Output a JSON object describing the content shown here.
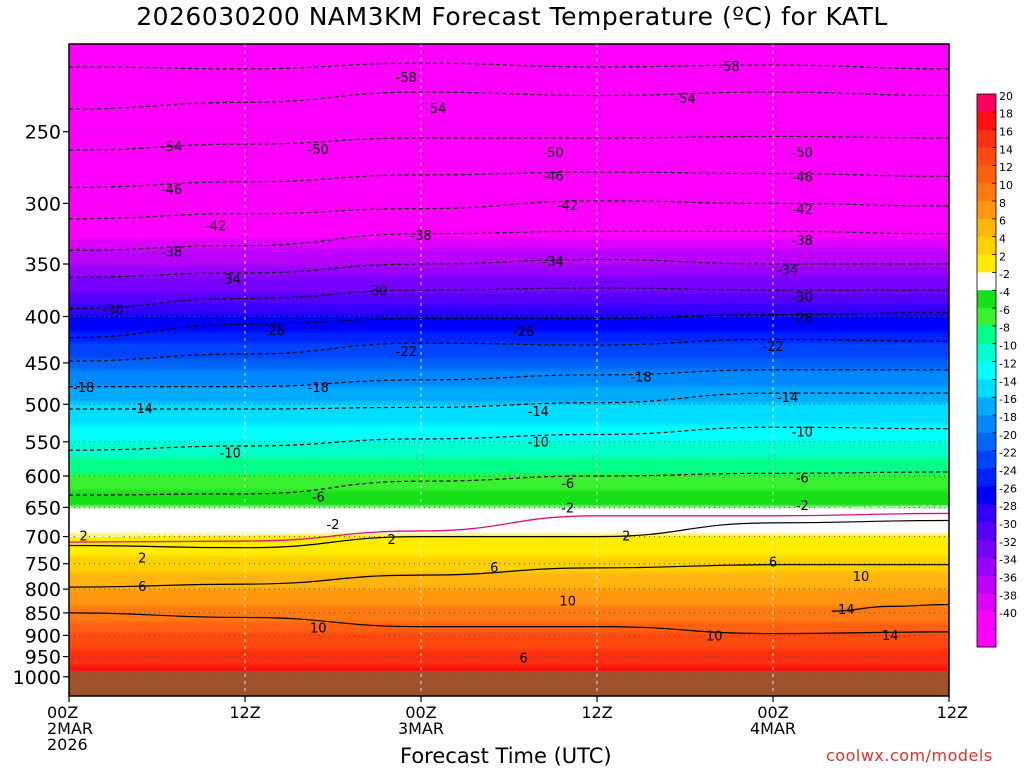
{
  "chart_data": {
    "type": "heatmap",
    "title": "2026030200 NAM3KM Forecast Temperature (ºC) for KATL",
    "xlabel": "Forecast Time (UTC)",
    "credit": "coolwx.com/models",
    "x_ticks": [
      {
        "hour": 0,
        "line1": "00Z",
        "line2": "2MAR",
        "line3": "2026"
      },
      {
        "hour": 12,
        "line1": "12Z",
        "line2": "",
        "line3": ""
      },
      {
        "hour": 24,
        "line1": "00Z",
        "line2": "3MAR",
        "line3": ""
      },
      {
        "hour": 36,
        "line1": "12Z",
        "line2": "",
        "line3": ""
      },
      {
        "hour": 48,
        "line1": "00Z",
        "line2": "4MAR",
        "line3": ""
      },
      {
        "hour": 60,
        "line1": "12Z",
        "line2": "",
        "line3": ""
      }
    ],
    "xlim_hours": [
      0,
      60
    ],
    "y_ticks_hpa": [
      250,
      300,
      350,
      400,
      450,
      500,
      550,
      600,
      650,
      700,
      750,
      800,
      850,
      900,
      950,
      1000
    ],
    "ylim_hpa": [
      200,
      1050
    ],
    "y_scale": "log",
    "ground_level_hpa": 985,
    "colorbar_labels": [
      20,
      18,
      16,
      14,
      12,
      10,
      8,
      6,
      4,
      2,
      -2,
      -4,
      -6,
      -8,
      -10,
      -12,
      -14,
      -16,
      -18,
      -20,
      -22,
      -24,
      -26,
      -28,
      -30,
      -32,
      -34,
      -36,
      -38,
      -40
    ],
    "colorbar_colors": [
      "#ff0060",
      "#ff1010",
      "#ff3010",
      "#ff4a10",
      "#ff6010",
      "#ff7a10",
      "#ff9810",
      "#ffb410",
      "#ffd000",
      "#ffec00",
      "#ffffff",
      "#18e018",
      "#38f030",
      "#00ff88",
      "#00ffcc",
      "#00ffff",
      "#00ddff",
      "#00aaff",
      "#0088ff",
      "#0066ff",
      "#0044ff",
      "#0022ff",
      "#0000ff",
      "#3300ff",
      "#5500ff",
      "#7700ff",
      "#9900ff",
      "#bb00ff",
      "#dd00ff",
      "#ff00ff",
      "#ff00ff"
    ],
    "temperature_profile": [
      {
        "p": 200,
        "t": -61
      },
      {
        "p": 250,
        "t": -53
      },
      {
        "p": 300,
        "t": -43
      },
      {
        "p": 350,
        "t": -34
      },
      {
        "p": 400,
        "t": -26
      },
      {
        "p": 450,
        "t": -19
      },
      {
        "p": 500,
        "t": -14
      },
      {
        "p": 550,
        "t": -10
      },
      {
        "p": 600,
        "t": -6
      },
      {
        "p": 650,
        "t": -2
      },
      {
        "p": 700,
        "t": 2
      },
      {
        "p": 750,
        "t": 5
      },
      {
        "p": 800,
        "t": 8
      },
      {
        "p": 850,
        "t": 11
      },
      {
        "p": 900,
        "t": 14
      },
      {
        "p": 950,
        "t": 17
      },
      {
        "p": 1000,
        "t": 19
      }
    ],
    "contours": [
      {
        "value": -58,
        "dash": true,
        "points": [
          [
            0,
            212
          ],
          [
            12,
            213
          ],
          [
            24,
            210
          ],
          [
            36,
            212
          ],
          [
            48,
            211
          ],
          [
            60,
            213
          ]
        ]
      },
      {
        "value": -54,
        "dash": true,
        "points": [
          [
            0,
            236
          ],
          [
            12,
            232
          ],
          [
            24,
            226
          ],
          [
            36,
            228
          ],
          [
            48,
            226
          ],
          [
            60,
            228
          ]
        ]
      },
      {
        "value": -50,
        "dash": true,
        "points": [
          [
            0,
            262
          ],
          [
            12,
            258
          ],
          [
            24,
            254
          ],
          [
            36,
            254
          ],
          [
            48,
            253
          ],
          [
            60,
            254
          ]
        ]
      },
      {
        "value": -46,
        "dash": true,
        "points": [
          [
            0,
            288
          ],
          [
            12,
            284
          ],
          [
            24,
            279
          ],
          [
            36,
            277
          ],
          [
            48,
            278
          ],
          [
            60,
            280
          ]
        ]
      },
      {
        "value": -42,
        "dash": true,
        "points": [
          [
            0,
            312
          ],
          [
            12,
            308
          ],
          [
            24,
            304
          ],
          [
            36,
            298
          ],
          [
            48,
            300
          ],
          [
            60,
            302
          ]
        ]
      },
      {
        "value": -38,
        "dash": true,
        "points": [
          [
            0,
            338
          ],
          [
            12,
            334
          ],
          [
            24,
            324
          ],
          [
            36,
            322
          ],
          [
            48,
            322
          ],
          [
            60,
            324
          ]
        ]
      },
      {
        "value": -34,
        "dash": true,
        "points": [
          [
            0,
            362
          ],
          [
            12,
            358
          ],
          [
            24,
            350
          ],
          [
            36,
            346
          ],
          [
            48,
            350
          ],
          [
            60,
            350
          ]
        ]
      },
      {
        "value": -30,
        "dash": true,
        "points": [
          [
            0,
            392
          ],
          [
            12,
            382
          ],
          [
            24,
            374
          ],
          [
            36,
            372
          ],
          [
            48,
            374
          ],
          [
            60,
            374
          ]
        ]
      },
      {
        "value": -26,
        "dash": true,
        "points": [
          [
            0,
            422
          ],
          [
            12,
            408
          ],
          [
            24,
            402
          ],
          [
            36,
            402
          ],
          [
            48,
            398
          ],
          [
            60,
            396
          ]
        ]
      },
      {
        "value": -22,
        "dash": true,
        "points": [
          [
            0,
            448
          ],
          [
            12,
            440
          ],
          [
            24,
            428
          ],
          [
            36,
            430
          ],
          [
            48,
            424
          ],
          [
            60,
            426
          ]
        ]
      },
      {
        "value": -18,
        "dash": true,
        "points": [
          [
            0,
            478
          ],
          [
            12,
            478
          ],
          [
            24,
            470
          ],
          [
            36,
            464
          ],
          [
            48,
            458
          ],
          [
            60,
            458
          ]
        ]
      },
      {
        "value": -14,
        "dash": true,
        "points": [
          [
            0,
            506
          ],
          [
            12,
            506
          ],
          [
            24,
            504
          ],
          [
            36,
            498
          ],
          [
            48,
            486
          ],
          [
            60,
            486
          ]
        ]
      },
      {
        "value": -10,
        "dash": true,
        "points": [
          [
            0,
            562
          ],
          [
            12,
            556
          ],
          [
            24,
            546
          ],
          [
            36,
            540
          ],
          [
            48,
            530
          ],
          [
            60,
            532
          ]
        ]
      },
      {
        "value": -6,
        "dash": true,
        "points": [
          [
            0,
            630
          ],
          [
            12,
            628
          ],
          [
            24,
            608
          ],
          [
            36,
            600
          ],
          [
            48,
            596
          ],
          [
            60,
            594
          ]
        ]
      },
      {
        "value": -2,
        "dash": true,
        "points": [
          [
            0,
            700
          ],
          [
            12,
            696
          ],
          [
            24,
            684
          ],
          [
            36,
            654
          ],
          [
            48,
            652
          ],
          [
            60,
            648
          ]
        ]
      },
      {
        "value": 2,
        "dash": false,
        "points": [
          [
            0,
            716
          ],
          [
            12,
            720
          ],
          [
            24,
            700
          ],
          [
            36,
            700
          ],
          [
            48,
            676
          ],
          [
            60,
            672
          ]
        ]
      },
      {
        "value": 6,
        "dash": false,
        "points": [
          [
            0,
            796
          ],
          [
            12,
            790
          ],
          [
            24,
            772
          ],
          [
            36,
            758
          ],
          [
            48,
            752
          ],
          [
            60,
            752
          ]
        ]
      },
      {
        "value": 10,
        "dash": false,
        "points": [
          [
            0,
            850
          ],
          [
            12,
            860
          ],
          [
            24,
            880
          ],
          [
            36,
            880
          ],
          [
            48,
            896
          ],
          [
            60,
            892
          ]
        ]
      },
      {
        "value": 14,
        "dash": false,
        "points": [
          [
            52,
            846
          ],
          [
            56,
            836
          ],
          [
            60,
            832
          ]
        ]
      }
    ],
    "contour_labels": [
      {
        "text": "-58",
        "hour": 45,
        "p": 212
      },
      {
        "text": "-58",
        "hour": 23,
        "p": 218
      },
      {
        "text": "-54",
        "hour": 7,
        "p": 260
      },
      {
        "text": "-54",
        "hour": 25,
        "p": 236
      },
      {
        "text": "-54",
        "hour": 42,
        "p": 230
      },
      {
        "text": "-50",
        "hour": 17,
        "p": 262
      },
      {
        "text": "-50",
        "hour": 33,
        "p": 264
      },
      {
        "text": "-50",
        "hour": 50,
        "p": 264
      },
      {
        "text": "-46",
        "hour": 7,
        "p": 290
      },
      {
        "text": "-46",
        "hour": 33,
        "p": 280
      },
      {
        "text": "-46",
        "hour": 50,
        "p": 281
      },
      {
        "text": "-42",
        "hour": 10,
        "p": 318
      },
      {
        "text": "-42",
        "hour": 34,
        "p": 302
      },
      {
        "text": "-42",
        "hour": 50,
        "p": 305
      },
      {
        "text": "-38",
        "hour": 7,
        "p": 340
      },
      {
        "text": "-38",
        "hour": 24,
        "p": 326
      },
      {
        "text": "-38",
        "hour": 50,
        "p": 330
      },
      {
        "text": "-34",
        "hour": 11,
        "p": 364
      },
      {
        "text": "-34",
        "hour": 33,
        "p": 348
      },
      {
        "text": "-34",
        "hour": 49,
        "p": 356
      },
      {
        "text": "-30",
        "hour": 3,
        "p": 394
      },
      {
        "text": "-30",
        "hour": 21,
        "p": 375
      },
      {
        "text": "-30",
        "hour": 50,
        "p": 381
      },
      {
        "text": "-26",
        "hour": 14,
        "p": 415
      },
      {
        "text": "-26",
        "hour": 31,
        "p": 416
      },
      {
        "text": "-26",
        "hour": 50,
        "p": 402
      },
      {
        "text": "-22",
        "hour": 23,
        "p": 438
      },
      {
        "text": "-22",
        "hour": 48,
        "p": 432
      },
      {
        "text": "-18",
        "hour": 1,
        "p": 480
      },
      {
        "text": "-18",
        "hour": 17,
        "p": 480
      },
      {
        "text": "-18",
        "hour": 39,
        "p": 467
      },
      {
        "text": "-14",
        "hour": 5,
        "p": 506
      },
      {
        "text": "-14",
        "hour": 32,
        "p": 510
      },
      {
        "text": "-14",
        "hour": 49,
        "p": 492
      },
      {
        "text": "-10",
        "hour": 11,
        "p": 567
      },
      {
        "text": "-10",
        "hour": 32,
        "p": 551
      },
      {
        "text": "-10",
        "hour": 50,
        "p": 537
      },
      {
        "text": "-6",
        "hour": 17,
        "p": 634
      },
      {
        "text": "-6",
        "hour": 34,
        "p": 612
      },
      {
        "text": "-6",
        "hour": 50,
        "p": 604
      },
      {
        "text": "-2",
        "hour": 18,
        "p": 680
      },
      {
        "text": "-2",
        "hour": 34,
        "p": 652
      },
      {
        "text": "-2",
        "hour": 50,
        "p": 648
      },
      {
        "text": "2",
        "hour": 1,
        "p": 700
      },
      {
        "text": "2",
        "hour": 5,
        "p": 740
      },
      {
        "text": "2",
        "hour": 22,
        "p": 706
      },
      {
        "text": "2",
        "hour": 38,
        "p": 700
      },
      {
        "text": "6",
        "hour": 5,
        "p": 796
      },
      {
        "text": "6",
        "hour": 29,
        "p": 758
      },
      {
        "text": "6",
        "hour": 48,
        "p": 748
      },
      {
        "text": "10",
        "hour": 17,
        "p": 884
      },
      {
        "text": "10",
        "hour": 34,
        "p": 826
      },
      {
        "text": "10",
        "hour": 44,
        "p": 902
      },
      {
        "text": "10",
        "hour": 54,
        "p": 776
      },
      {
        "text": "14",
        "hour": 53,
        "p": 844
      },
      {
        "text": "14",
        "hour": 56,
        "p": 901
      },
      {
        "text": "6",
        "hour": 31,
        "p": 955
      }
    ]
  }
}
